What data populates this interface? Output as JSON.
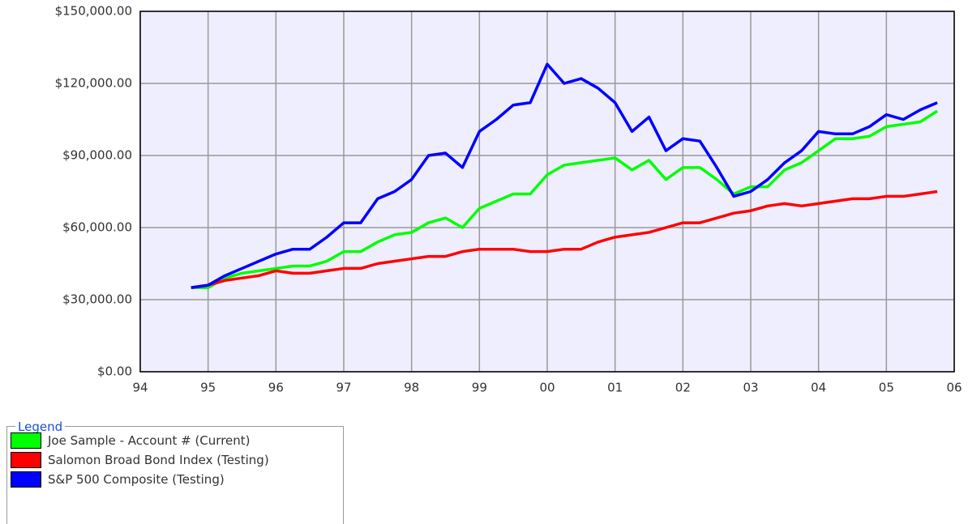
{
  "chart_data": {
    "type": "line",
    "x": [
      1994.75,
      1995.0,
      1995.25,
      1995.5,
      1995.75,
      1996.0,
      1996.25,
      1996.5,
      1996.75,
      1997.0,
      1997.25,
      1997.5,
      1997.75,
      1998.0,
      1998.25,
      1998.5,
      1998.75,
      1999.0,
      1999.25,
      1999.5,
      1999.75,
      2000.0,
      2000.25,
      2000.5,
      2000.75,
      2001.0,
      2001.25,
      2001.5,
      2001.75,
      2002.0,
      2002.25,
      2002.5,
      2002.75,
      2003.0,
      2003.25,
      2003.5,
      2003.75,
      2004.0,
      2004.25,
      2004.5,
      2004.75,
      2005.0,
      2005.25,
      2005.5,
      2005.75
    ],
    "series": [
      {
        "name": "Joe Sample - Account # (Current)",
        "color": "#00ff00",
        "values": [
          35000,
          35000,
          39000,
          41000,
          42000,
          43000,
          44000,
          44000,
          46000,
          50000,
          50000,
          54000,
          57000,
          58000,
          62000,
          64000,
          60000,
          68000,
          71000,
          74000,
          74000,
          82000,
          86000,
          87000,
          88000,
          89000,
          84000,
          88000,
          80000,
          85000,
          85000,
          80000,
          74000,
          77000,
          77000,
          84000,
          87000,
          92000,
          97000,
          97000,
          98000,
          102000,
          103000,
          104000,
          108500
        ]
      },
      {
        "name": "Salomon Broad Bond Index (Testing)",
        "color": "#ff0000",
        "values": [
          35000,
          36000,
          38000,
          39000,
          40000,
          42000,
          41000,
          41000,
          42000,
          43000,
          43000,
          45000,
          46000,
          47000,
          48000,
          48000,
          50000,
          51000,
          51000,
          51000,
          50000,
          50000,
          51000,
          51000,
          54000,
          56000,
          57000,
          58000,
          60000,
          62000,
          62000,
          64000,
          66000,
          67000,
          69000,
          70000,
          69000,
          70000,
          71000,
          72000,
          72000,
          73000,
          73000,
          74000,
          75000
        ]
      },
      {
        "name": "S&P 500 Composite (Testing)",
        "color": "#0000ff",
        "values": [
          35000,
          36000,
          40000,
          43000,
          46000,
          49000,
          51000,
          51000,
          56000,
          62000,
          62000,
          72000,
          75000,
          80000,
          90000,
          91000,
          85000,
          100000,
          105000,
          111000,
          112000,
          128000,
          120000,
          122000,
          118000,
          112000,
          100000,
          106000,
          92000,
          97000,
          96000,
          85000,
          73000,
          75000,
          80000,
          87000,
          92000,
          100000,
          99000,
          99000,
          102000,
          107000,
          105000,
          109000,
          112000
        ]
      }
    ],
    "xlim": [
      1994,
      2006
    ],
    "xticks": [
      {
        "value": 1994,
        "label": "94"
      },
      {
        "value": 1995,
        "label": "95"
      },
      {
        "value": 1996,
        "label": "96"
      },
      {
        "value": 1997,
        "label": "97"
      },
      {
        "value": 1998,
        "label": "98"
      },
      {
        "value": 1999,
        "label": "99"
      },
      {
        "value": 2000,
        "label": "00"
      },
      {
        "value": 2001,
        "label": "01"
      },
      {
        "value": 2002,
        "label": "02"
      },
      {
        "value": 2003,
        "label": "03"
      },
      {
        "value": 2004,
        "label": "04"
      },
      {
        "value": 2005,
        "label": "05"
      },
      {
        "value": 2006,
        "label": "06"
      }
    ],
    "ylim": [
      0,
      150000
    ],
    "yticks": [
      {
        "value": 0,
        "label": "$0.00"
      },
      {
        "value": 30000,
        "label": "$30,000.00"
      },
      {
        "value": 60000,
        "label": "$60,000.00"
      },
      {
        "value": 90000,
        "label": "$90,000.00"
      },
      {
        "value": 120000,
        "label": "$120,000.00"
      },
      {
        "value": 150000,
        "label": "$150,000.00"
      }
    ],
    "grid": true,
    "legend_title": "Legend"
  }
}
